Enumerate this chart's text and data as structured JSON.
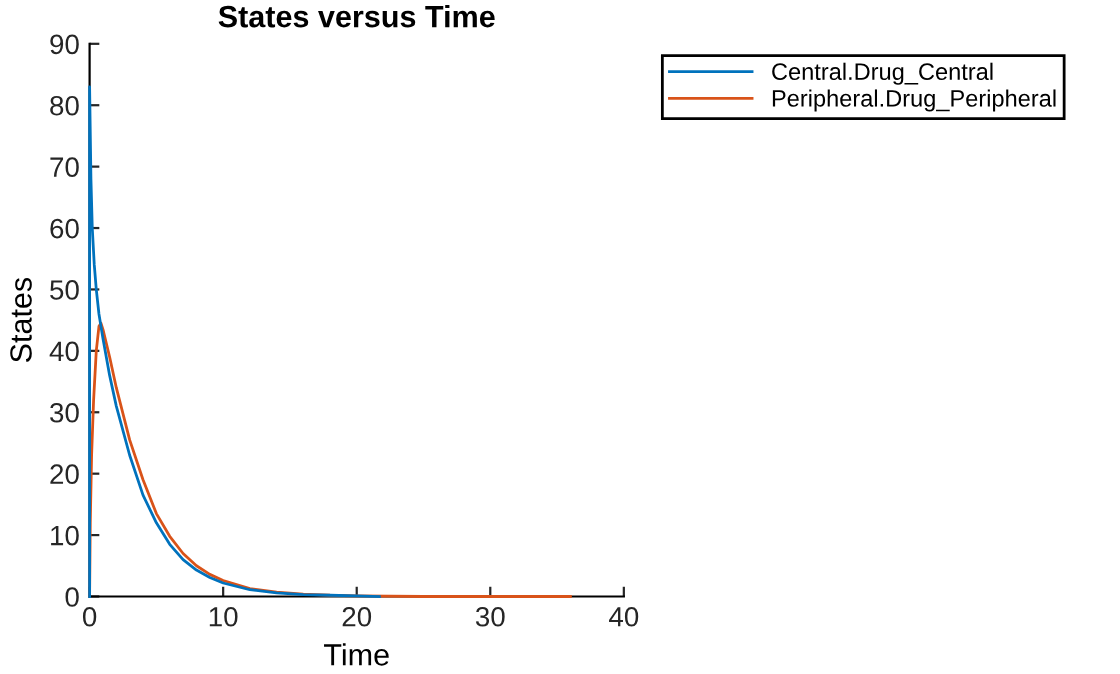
{
  "chart_data": {
    "type": "line",
    "title": "States versus Time",
    "xlabel": "Time",
    "ylabel": "States",
    "xlim": [
      0,
      40
    ],
    "xticks": [
      0,
      10,
      20,
      30,
      40
    ],
    "ylim": [
      0,
      90
    ],
    "yticks": [
      0,
      10,
      20,
      30,
      40,
      50,
      60,
      70,
      80,
      90
    ],
    "grid": false,
    "legend": "top right",
    "series": [
      {
        "name": "Central.Drug_Central",
        "color": "#0072bd",
        "x": [
          0,
          0,
          0.1,
          0.2,
          0.35,
          0.5,
          0.7,
          1,
          1.5,
          2,
          3,
          4,
          5,
          6,
          7,
          8,
          9,
          10,
          12,
          14,
          16,
          18,
          20,
          21.7
        ],
        "values": [
          0,
          83,
          68,
          60,
          54,
          50,
          46,
          42,
          36,
          31,
          23,
          16.5,
          12,
          8.5,
          6,
          4.3,
          3.1,
          2.2,
          1.1,
          0.6,
          0.3,
          0.2,
          0.1,
          0
        ]
      },
      {
        "name": "Peripheral.Drug_Peripheral",
        "color": "#d95319",
        "x": [
          0,
          0.05,
          0.15,
          0.3,
          0.5,
          0.7,
          0.85,
          1,
          1.5,
          2,
          3,
          4,
          5,
          6,
          7,
          8,
          9,
          10,
          12,
          14,
          16,
          18,
          20,
          25,
          30,
          36
        ],
        "values": [
          0,
          12,
          23,
          32,
          40,
          44,
          44.5,
          43.5,
          39,
          34,
          25.5,
          19,
          13.5,
          9.8,
          7,
          5,
          3.6,
          2.6,
          1.3,
          0.7,
          0.4,
          0.2,
          0.1,
          0,
          0,
          0
        ]
      }
    ]
  }
}
